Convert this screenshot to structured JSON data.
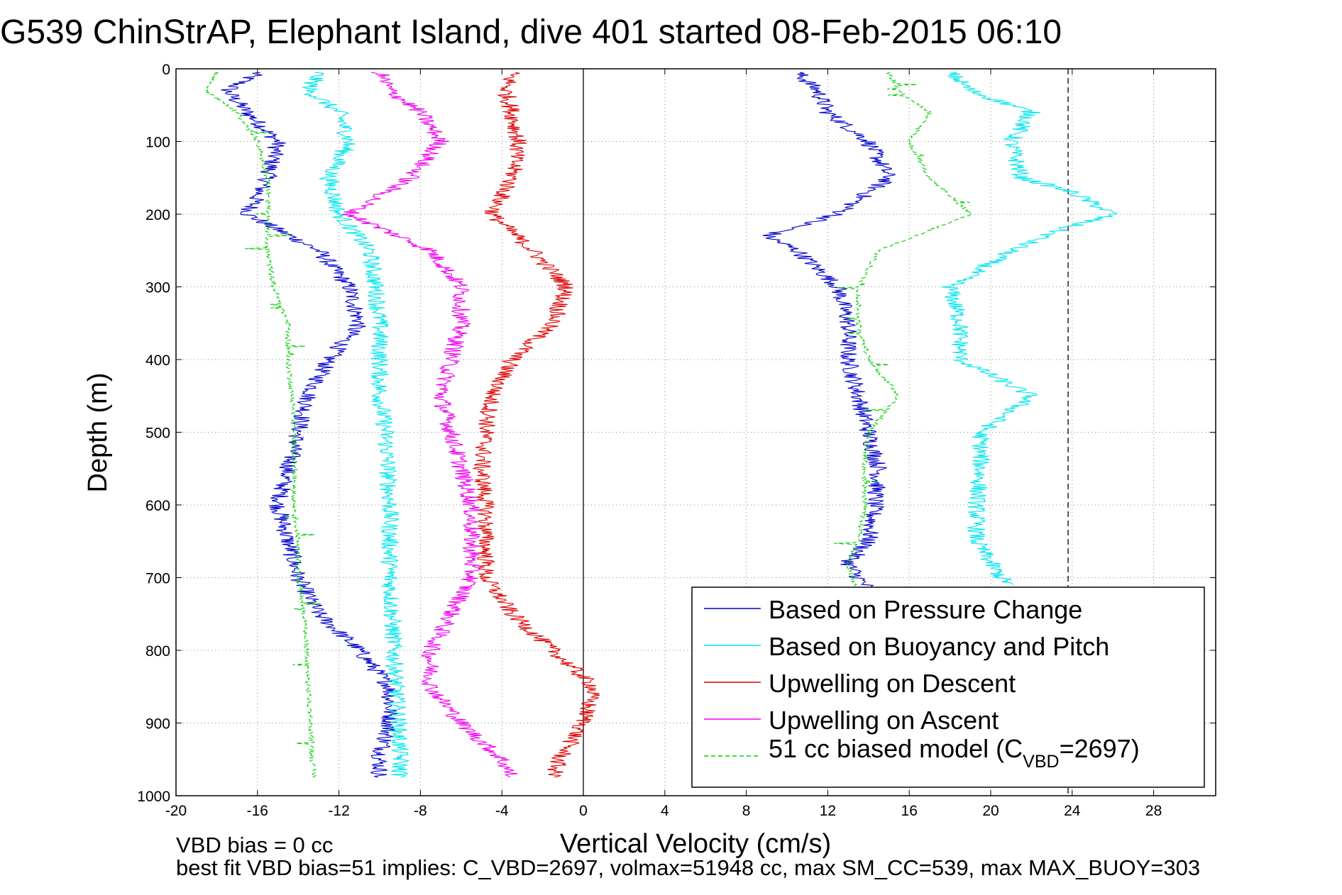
{
  "chart_data": {
    "type": "line",
    "title": "G539 ChinStrAP, Elephant Island, dive 401 started 08-Feb-2015 06:10",
    "xlabel": "Vertical Velocity (cm/s)",
    "ylabel": "Depth (m)",
    "xlim": [
      -20,
      31
    ],
    "ylim": [
      0,
      1000
    ],
    "y_reversed": true,
    "grid": true,
    "xticks": [
      -20,
      -16,
      -12,
      -8,
      -4,
      0,
      4,
      8,
      12,
      16,
      20,
      24,
      28
    ],
    "yticks": [
      0,
      100,
      200,
      300,
      400,
      500,
      600,
      700,
      800,
      900,
      1000
    ],
    "reference_lines": [
      {
        "orientation": "vertical",
        "x": 0,
        "style": "solid",
        "color": "#000000"
      },
      {
        "orientation": "vertical",
        "x": 23.8,
        "style": "dashed",
        "color": "#000000"
      }
    ],
    "legend_position": "lower-right",
    "footer_lines": [
      "VBD bias = 0 cc",
      "best fit VBD bias=51 implies: C_VBD=2697, volmax=51948 cc, max SM_CC=539, max MAX_BUOY=303"
    ],
    "legend_last_main": "51 cc biased model (C",
    "legend_last_sub": "VBD",
    "legend_last_tail": "=2697)",
    "series": [
      {
        "name": "Based on Pressure Change",
        "color": "#0000cc",
        "style": "solid",
        "segments": [
          {
            "y": [
              5,
              30,
              60,
              100,
              150,
              200,
              250,
              300,
              350,
              400,
              450,
              500,
              550,
              600,
              650,
              700,
              750,
              800,
              850,
              900,
              950,
              975
            ],
            "x": [
              -16,
              -17.5,
              -16.5,
              -15,
              -15.5,
              -16.5,
              -13,
              -11.5,
              -11,
              -12.5,
              -13.5,
              -14,
              -14.5,
              -15,
              -14.5,
              -14,
              -13,
              -11,
              -9.5,
              -9.5,
              -10,
              -10
            ]
          },
          {
            "y": [
              5,
              30,
              60,
              100,
              150,
              200,
              230,
              250,
              300,
              350,
              400,
              450,
              500,
              550,
              600,
              650,
              680,
              700,
              715
            ],
            "x": [
              10.5,
              11.5,
              12,
              14,
              15,
              12.5,
              9,
              10.5,
              12.5,
              13,
              13,
              13.5,
              14,
              14.5,
              14.3,
              14,
              13,
              13.5,
              14
            ]
          }
        ]
      },
      {
        "name": "Based on Buoyancy and Pitch",
        "color": "#00e5ee",
        "style": "solid",
        "segments": [
          {
            "y": [
              5,
              30,
              60,
              100,
              150,
              200,
              250,
              300,
              350,
              400,
              450,
              500,
              550,
              600,
              650,
              700,
              750,
              800,
              850,
              900,
              950,
              975
            ],
            "x": [
              -13,
              -13.5,
              -12,
              -11.5,
              -12.5,
              -12,
              -10.5,
              -10.2,
              -10,
              -10,
              -10,
              -9.7,
              -9.6,
              -9.5,
              -9.5,
              -9.5,
              -9.4,
              -9.3,
              -9.2,
              -9.1,
              -9.0,
              -9.0
            ]
          },
          {
            "y": [
              5,
              30,
              60,
              100,
              150,
              170,
              200,
              220,
              250,
              300,
              350,
              400,
              450,
              500,
              550,
              600,
              650,
              680,
              700,
              710
            ],
            "x": [
              18,
              19,
              22,
              21,
              21.5,
              24,
              26,
              23.5,
              21,
              18,
              18.5,
              18.5,
              22,
              19.5,
              19.5,
              19.3,
              19.3,
              20,
              20.5,
              21
            ]
          }
        ]
      },
      {
        "name": "Upwelling on Descent",
        "color": "#dd0000",
        "style": "solid",
        "segments": [
          {
            "y": [
              5,
              30,
              60,
              100,
              150,
              200,
              250,
              300,
              350,
              400,
              450,
              500,
              550,
              600,
              650,
              700,
              750,
              800,
              850,
              900,
              950,
              975
            ],
            "x": [
              -3.5,
              -3.8,
              -3.5,
              -3.2,
              -3.5,
              -4.5,
              -2.5,
              -0.8,
              -1.5,
              -3.5,
              -4.5,
              -4.8,
              -5,
              -4.8,
              -4.8,
              -4.8,
              -3.5,
              -1.5,
              0.5,
              0,
              -1.2,
              -1.5
            ]
          }
        ]
      },
      {
        "name": "Upwelling on Ascent",
        "color": "#ee00ee",
        "style": "solid",
        "segments": [
          {
            "y": [
              5,
              30,
              60,
              100,
              150,
              200,
              250,
              300,
              350,
              400,
              450,
              500,
              550,
              600,
              650,
              700,
              750,
              800,
              850,
              900,
              950,
              975
            ],
            "x": [
              -10,
              -9.5,
              -8,
              -7,
              -8.5,
              -11.5,
              -7.5,
              -6,
              -6,
              -6.5,
              -7,
              -6.5,
              -6,
              -5.5,
              -5.5,
              -5.5,
              -6.5,
              -7.5,
              -7.5,
              -6,
              -4,
              -3.5
            ]
          }
        ]
      },
      {
        "name": "51 cc biased model (CVBD=2697)",
        "color": "#00cc00",
        "style": "dashed",
        "segments": [
          {
            "y": [
              5,
              30,
              60,
              100,
              150,
              200,
              250,
              300,
              350,
              400,
              450,
              500,
              550,
              600,
              650,
              700,
              750,
              800,
              850,
              900,
              950,
              975
            ],
            "x": [
              -18,
              -18.5,
              -17,
              -16,
              -15.5,
              -15.5,
              -15.5,
              -15.2,
              -14.5,
              -14.5,
              -14.3,
              -14.2,
              -14.2,
              -14.2,
              -14,
              -14,
              -13.7,
              -13.6,
              -13.5,
              -13.4,
              -13.3,
              -13.2
            ]
          },
          {
            "y": [
              5,
              30,
              60,
              100,
              150,
              200,
              250,
              300,
              350,
              400,
              450,
              500,
              550,
              600,
              650,
              680,
              700,
              715
            ],
            "x": [
              15,
              15.5,
              17,
              16,
              17,
              19,
              14.5,
              13.5,
              13.5,
              14,
              15.5,
              14,
              13.8,
              13.8,
              13.5,
              13,
              13.2,
              13.4
            ]
          }
        ]
      }
    ]
  }
}
